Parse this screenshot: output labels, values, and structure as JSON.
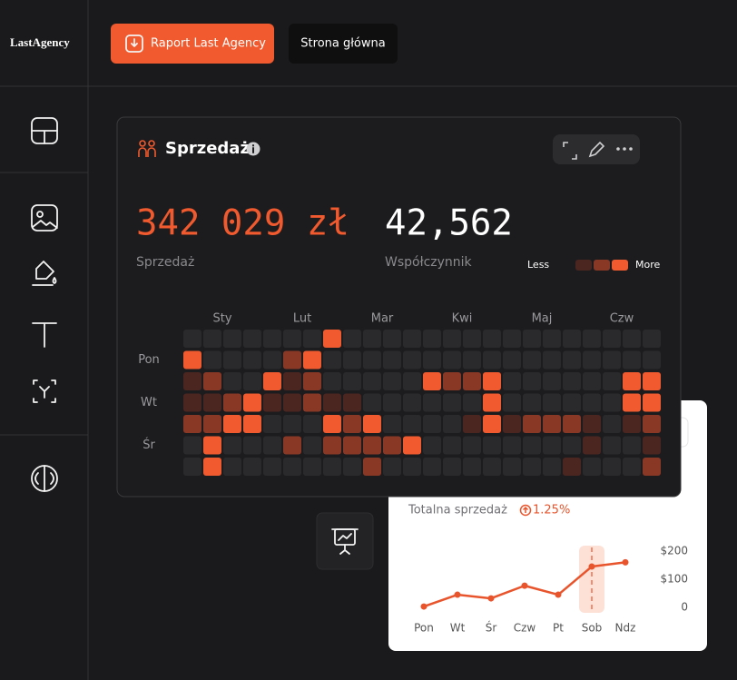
{
  "header": {
    "logo": "LastAgency",
    "buttons": [
      "Raport Last Agency",
      "Strona główna"
    ]
  },
  "card": {
    "title": "Sprzedaż",
    "metrics": [
      {
        "value": "342 029 zł",
        "label": "Sprzedaż"
      },
      {
        "value": "42,562",
        "label": "Współczynnik"
      }
    ]
  },
  "chart_data": [
    {
      "type": "heatmap",
      "categories": [
        null,
        null,
        "Sty",
        null,
        null,
        null,
        "Lut",
        null,
        null,
        null,
        "Mar",
        null,
        null,
        null,
        "Kwi",
        null,
        null,
        null,
        "Maj",
        null,
        null,
        null,
        "Czw",
        null
      ],
      "rows": [
        null,
        "Pon",
        null,
        "Wt",
        null,
        "Śr",
        null
      ],
      "values": [
        [
          0,
          0,
          0,
          0,
          0,
          0,
          0,
          3,
          0,
          0,
          0,
          0,
          0,
          0,
          0,
          0,
          0,
          0,
          0,
          0,
          0,
          0,
          0,
          0
        ],
        [
          3,
          0,
          0,
          0,
          0,
          2,
          3,
          0,
          0,
          0,
          0,
          0,
          0,
          0,
          0,
          0,
          0,
          0,
          0,
          0,
          0,
          0,
          0,
          0
        ],
        [
          1,
          2,
          0,
          0,
          3,
          1,
          2,
          0,
          0,
          0,
          0,
          0,
          3,
          2,
          2,
          3,
          0,
          0,
          0,
          0,
          0,
          0,
          3,
          3
        ],
        [
          1,
          1,
          2,
          3,
          1,
          1,
          2,
          1,
          1,
          0,
          0,
          0,
          0,
          0,
          0,
          3,
          0,
          0,
          0,
          0,
          0,
          0,
          3,
          3
        ],
        [
          2,
          2,
          3,
          3,
          0,
          0,
          0,
          3,
          2,
          3,
          0,
          0,
          0,
          0,
          1,
          3,
          1,
          2,
          2,
          2,
          1,
          0,
          1,
          2
        ],
        [
          0,
          3,
          0,
          0,
          0,
          2,
          0,
          2,
          2,
          2,
          2,
          3,
          0,
          0,
          0,
          0,
          0,
          0,
          0,
          0,
          1,
          0,
          0,
          1
        ],
        [
          0,
          3,
          0,
          0,
          0,
          0,
          0,
          0,
          0,
          2,
          0,
          0,
          0,
          0,
          0,
          0,
          0,
          0,
          0,
          1,
          0,
          0,
          0,
          2
        ]
      ],
      "colors": [
        "#2a2a2c",
        "#4b2520",
        "#8a3826",
        "#f05a2e"
      ],
      "legend": {
        "low": "Less",
        "high": "More"
      }
    },
    {
      "type": "line",
      "title": "Totalna sprzedaż",
      "change": "1.25%",
      "categories": [
        "Pon",
        "Wt",
        "Śr",
        "Czw",
        "Pt",
        "Sob",
        "Ndz"
      ],
      "values": [
        3,
        45,
        32,
        77,
        45,
        145,
        160
      ],
      "color": "#e8552d",
      "highlight_index": 5,
      "ylim": [
        0,
        200
      ],
      "yticks": [
        0,
        {
          "value": 100,
          "label": "$100"
        },
        {
          "value": 200,
          "label": "$200"
        }
      ]
    }
  ]
}
